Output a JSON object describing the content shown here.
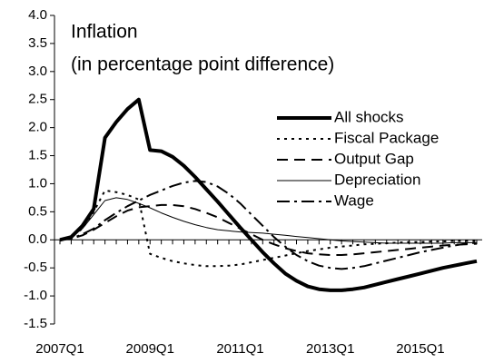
{
  "chart_data": {
    "type": "line",
    "title": "Inflation",
    "subtitle": "(in percentage point difference)",
    "categories": [
      "2007Q1",
      null,
      null,
      null,
      null,
      null,
      null,
      null,
      "2009Q1",
      null,
      null,
      null,
      null,
      null,
      null,
      null,
      "2011Q1",
      null,
      null,
      null,
      null,
      null,
      null,
      null,
      "2013Q1",
      null,
      null,
      null,
      null,
      null,
      null,
      null,
      "2015Q1",
      null,
      null,
      null,
      null,
      null
    ],
    "series": [
      {
        "name": "All shocks",
        "color": "#000000",
        "width": 4,
        "style": "solid",
        "values": [
          0,
          0.05,
          0.25,
          0.55,
          1.82,
          2.1,
          2.33,
          2.5,
          1.6,
          1.58,
          1.48,
          1.32,
          1.12,
          0.9,
          0.68,
          0.45,
          0.22,
          0,
          -0.22,
          -0.42,
          -0.6,
          -0.73,
          -0.83,
          -0.88,
          -0.9,
          -0.9,
          -0.88,
          -0.85,
          -0.8,
          -0.75,
          -0.7,
          -0.65,
          -0.6,
          -0.55,
          -0.5,
          -0.46,
          -0.42,
          -0.38
        ]
      },
      {
        "name": "Fiscal Package",
        "color": "#000000",
        "width": 2,
        "style": "dotted",
        "values": [
          0,
          0.05,
          0.2,
          0.5,
          0.88,
          0.85,
          0.8,
          0.72,
          -0.25,
          -0.32,
          -0.38,
          -0.42,
          -0.45,
          -0.47,
          -0.47,
          -0.46,
          -0.44,
          -0.4,
          -0.36,
          -0.32,
          -0.28,
          -0.24,
          -0.2,
          -0.17,
          -0.14,
          -0.12,
          -0.1,
          -0.08,
          -0.07,
          -0.06,
          -0.05,
          -0.04,
          -0.04,
          -0.03,
          -0.03,
          -0.02,
          -0.02,
          -0.02
        ]
      },
      {
        "name": "Output Gap",
        "color": "#000000",
        "width": 2,
        "style": "dashed",
        "values": [
          0,
          0.02,
          0.08,
          0.18,
          0.3,
          0.42,
          0.52,
          0.58,
          0.6,
          0.62,
          0.62,
          0.6,
          0.55,
          0.48,
          0.4,
          0.3,
          0.2,
          0.1,
          0,
          -0.08,
          -0.15,
          -0.2,
          -0.24,
          -0.26,
          -0.27,
          -0.27,
          -0.26,
          -0.24,
          -0.22,
          -0.2,
          -0.18,
          -0.16,
          -0.14,
          -0.12,
          -0.1,
          -0.09,
          -0.08,
          -0.07
        ]
      },
      {
        "name": "Depreciation",
        "color": "#000000",
        "width": 1,
        "style": "solid",
        "values": [
          0,
          0.05,
          0.2,
          0.45,
          0.7,
          0.75,
          0.72,
          0.65,
          0.57,
          0.48,
          0.4,
          0.33,
          0.27,
          0.22,
          0.18,
          0.16,
          0.14,
          0.13,
          0.12,
          0.1,
          0.08,
          0.06,
          0.04,
          0.02,
          0,
          -0.02,
          -0.03,
          -0.04,
          -0.05,
          -0.06,
          -0.06,
          -0.06,
          -0.06,
          -0.06,
          -0.06,
          -0.05,
          -0.05,
          -0.05
        ]
      },
      {
        "name": "Wage",
        "color": "#000000",
        "width": 2,
        "style": "dashdot",
        "values": [
          0,
          0.02,
          0.1,
          0.2,
          0.35,
          0.48,
          0.6,
          0.7,
          0.8,
          0.88,
          0.96,
          1.02,
          1.05,
          1.03,
          0.95,
          0.82,
          0.65,
          0.45,
          0.25,
          0.05,
          -0.12,
          -0.27,
          -0.38,
          -0.46,
          -0.5,
          -0.52,
          -0.5,
          -0.47,
          -0.42,
          -0.37,
          -0.32,
          -0.27,
          -0.22,
          -0.18,
          -0.14,
          -0.1,
          -0.07,
          -0.05
        ]
      }
    ],
    "ylim": [
      -1.5,
      4
    ],
    "yticks": [
      {
        "value": 4,
        "label": "4.0"
      },
      3.5,
      {
        "value": 3,
        "label": "3.0"
      },
      2.5,
      {
        "value": 2,
        "label": "2.0"
      },
      1.5,
      {
        "value": 1,
        "label": "1.0"
      },
      0.5,
      {
        "value": 0,
        "label": "0.0"
      },
      -0.5,
      {
        "value": -1,
        "label": "-1.0"
      },
      -1.5
    ],
    "grid": false,
    "legend": "right"
  }
}
